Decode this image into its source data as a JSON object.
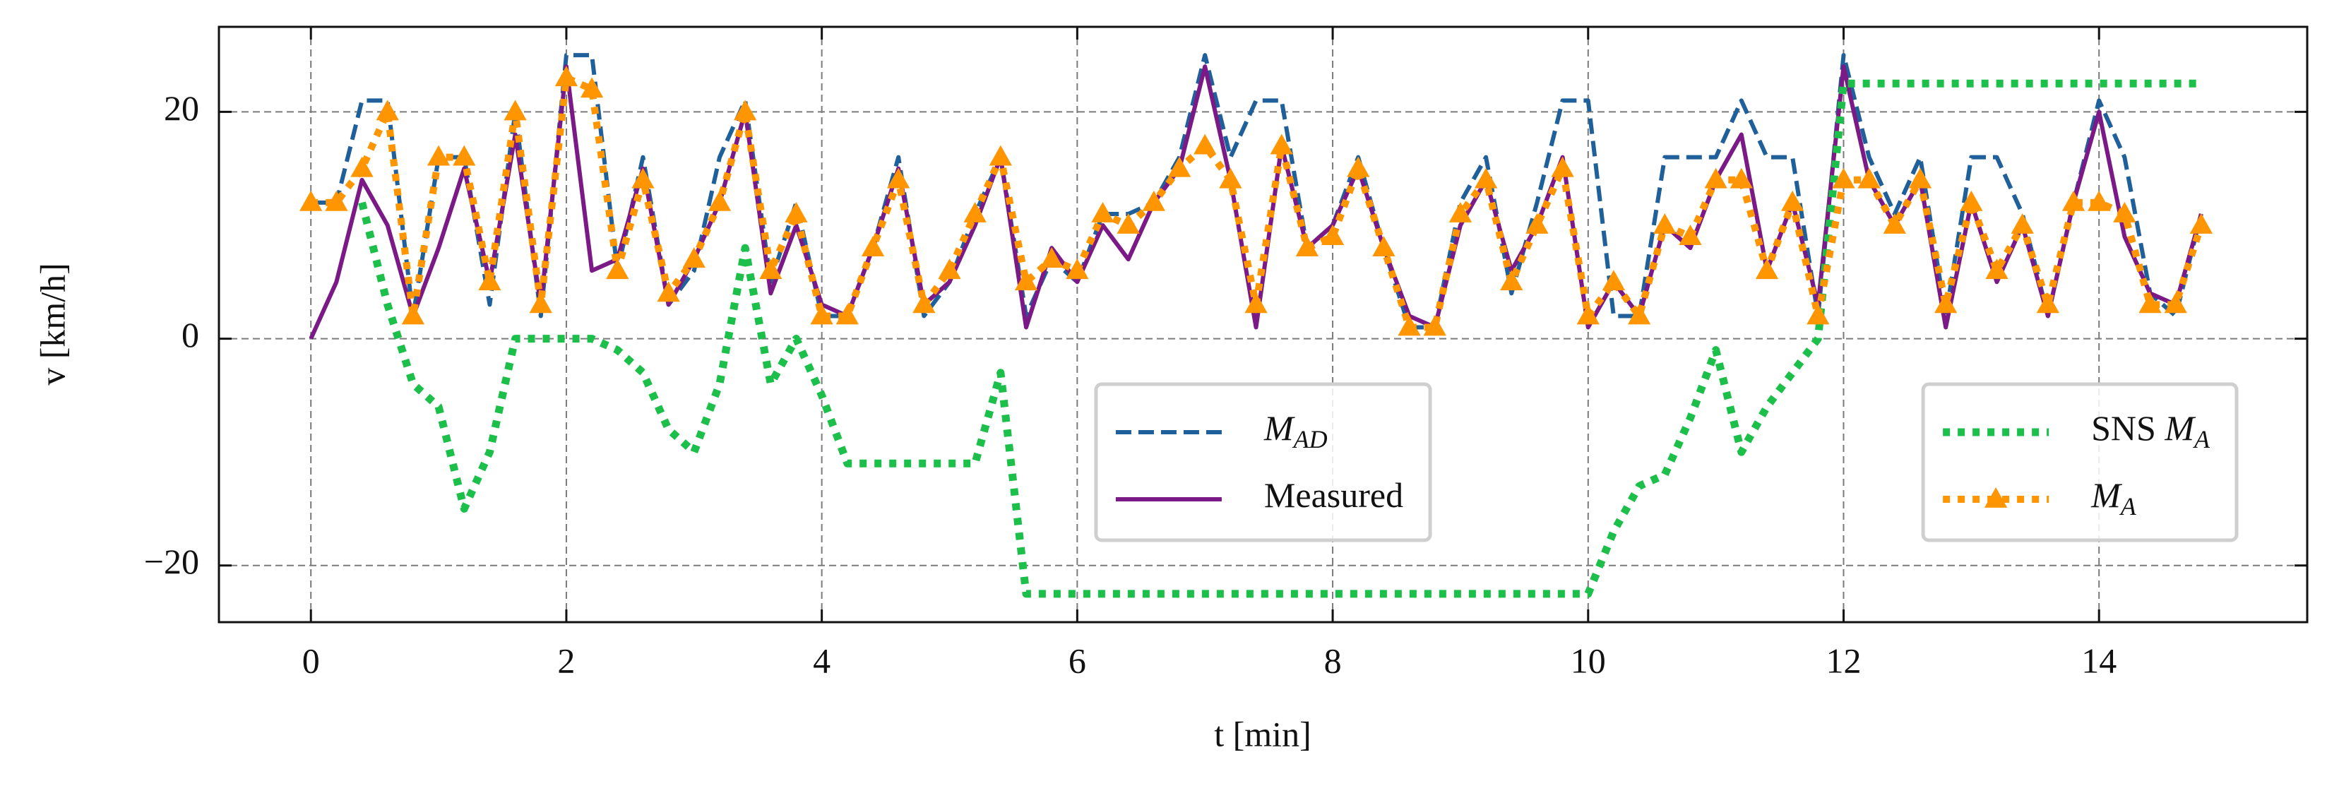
{
  "chart_data": {
    "type": "line",
    "xlabel": "t [min]",
    "ylabel": "v [km/h]",
    "xlim": [
      -0.72,
      15.63
    ],
    "ylim": [
      -25,
      27.5
    ],
    "xticks": [
      0,
      2,
      4,
      6,
      8,
      10,
      12,
      14
    ],
    "yticks": [
      {
        "value": -20,
        "label": "−20"
      },
      0,
      20
    ],
    "grid": true,
    "x": [
      0,
      0.2,
      0.4,
      0.6,
      0.8,
      1.0,
      1.2,
      1.4,
      1.6,
      1.8,
      2.0,
      2.2,
      2.4,
      2.6,
      2.8,
      3.0,
      3.2,
      3.4,
      3.6,
      3.8,
      4.0,
      4.2,
      4.4,
      4.6,
      4.8,
      5.0,
      5.2,
      5.4,
      5.6,
      5.8,
      6.0,
      6.2,
      6.4,
      6.6,
      6.8,
      7.0,
      7.2,
      7.4,
      7.6,
      7.8,
      8.0,
      8.2,
      8.4,
      8.6,
      8.8,
      9.0,
      9.2,
      9.4,
      9.6,
      9.8,
      10.0,
      10.2,
      10.4,
      10.6,
      10.8,
      11.0,
      11.2,
      11.4,
      11.6,
      11.8,
      12.0,
      12.2,
      12.4,
      12.6,
      12.8,
      13.0,
      13.2,
      13.4,
      13.6,
      13.8,
      14.0,
      14.2,
      14.4,
      14.6,
      14.8
    ],
    "series": [
      {
        "name": "M_AD",
        "color": "#1f5f9a",
        "linestyle": "dashed",
        "legend": "lower center",
        "values": [
          12,
          12,
          21,
          21,
          2,
          16,
          16,
          3,
          20,
          2,
          25,
          25,
          6,
          16,
          3,
          6,
          16,
          21,
          5,
          12,
          2,
          2,
          8,
          16,
          2,
          5,
          11,
          16,
          2,
          7,
          5,
          11,
          11,
          12,
          16,
          25,
          16,
          21,
          21,
          8,
          10,
          16,
          8,
          1,
          1,
          12,
          16,
          4,
          12,
          21,
          21,
          2,
          2,
          16,
          16,
          16,
          21,
          16,
          16,
          2,
          25,
          16,
          11,
          16,
          2,
          16,
          16,
          11,
          2,
          12,
          21,
          16,
          4,
          2,
          11
        ]
      },
      {
        "name": "Measured",
        "color": "#7b1a86",
        "linestyle": "solid",
        "legend": "lower center",
        "values": [
          0,
          5,
          14,
          10,
          2,
          8,
          15,
          5,
          18,
          3,
          24,
          6,
          7,
          15,
          3,
          7,
          12,
          20,
          4,
          10,
          3,
          2,
          8,
          15,
          3,
          5,
          10,
          16,
          1,
          8,
          5,
          10,
          7,
          12,
          15,
          24,
          14,
          1,
          17,
          8,
          10,
          15,
          8,
          2,
          1,
          10,
          14,
          6,
          10,
          16,
          1,
          5,
          2,
          10,
          8,
          14,
          18,
          6,
          12,
          3,
          24,
          14,
          10,
          14,
          1,
          12,
          5,
          10,
          2,
          12,
          20,
          9,
          4,
          3,
          11
        ]
      },
      {
        "name": "SNS M_A",
        "color": "#1cbf4a",
        "linestyle": "dotted",
        "legend": "lower right",
        "values": [
          null,
          null,
          12,
          3,
          -4,
          -6,
          -15,
          -10,
          0,
          0,
          0,
          0,
          -1,
          -3,
          -8,
          -10,
          -4,
          8,
          -4,
          0,
          -5,
          -11,
          -11,
          -11,
          -11,
          -11,
          -11,
          -3,
          -22.5,
          -22.5,
          -22.5,
          -22.5,
          -22.5,
          -22.5,
          -22.5,
          -22.5,
          -22.5,
          -22.5,
          -22.5,
          -22.5,
          -22.5,
          -22.5,
          -22.5,
          -22.5,
          -22.5,
          -22.5,
          -22.5,
          -22.5,
          -22.5,
          -22.5,
          -22.5,
          -17,
          -13,
          -12,
          -7,
          -1,
          -10,
          -6,
          -3,
          0,
          22.5,
          22.5,
          22.5,
          22.5,
          22.5,
          22.5,
          22.5,
          22.5,
          22.5,
          22.5,
          22.5,
          22.5,
          22.5,
          22.5,
          22.5
        ]
      },
      {
        "name": "M_A",
        "color": "#ff9500",
        "linestyle": "dotted",
        "marker": "triangle",
        "legend": "lower right",
        "values": [
          12,
          12,
          15,
          20,
          2,
          16,
          16,
          5,
          20,
          3,
          23,
          22,
          6,
          14,
          4,
          7,
          12,
          20,
          6,
          11,
          2,
          2,
          8,
          14,
          3,
          6,
          11,
          16,
          5,
          7,
          6,
          11,
          10,
          12,
          15,
          17,
          14,
          3,
          17,
          8,
          9,
          15,
          8,
          1,
          1,
          11,
          14,
          5,
          10,
          15,
          2,
          5,
          2,
          10,
          9,
          14,
          14,
          6,
          12,
          2,
          14,
          14,
          10,
          14,
          3,
          12,
          6,
          10,
          3,
          12,
          12,
          11,
          3,
          3,
          10
        ]
      }
    ]
  }
}
